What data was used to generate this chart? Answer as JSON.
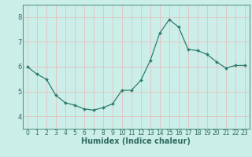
{
  "x": [
    0,
    1,
    2,
    3,
    4,
    5,
    6,
    7,
    8,
    9,
    10,
    11,
    12,
    13,
    14,
    15,
    16,
    17,
    18,
    19,
    20,
    21,
    22,
    23
  ],
  "y": [
    6.0,
    5.7,
    5.5,
    4.85,
    4.55,
    4.45,
    4.3,
    4.25,
    4.35,
    4.5,
    5.05,
    5.05,
    5.45,
    6.25,
    7.35,
    7.9,
    7.6,
    6.7,
    6.65,
    6.5,
    6.2,
    5.95,
    6.05,
    6.05
  ],
  "line_color": "#2e7d6e",
  "marker": "D",
  "marker_size": 2.0,
  "linewidth": 0.9,
  "background_color": "#cceee8",
  "grid_color": "#e8b8b8",
  "axis_color": "#2e6b5e",
  "xlabel": "Humidex (Indice chaleur)",
  "xlabel_fontsize": 7,
  "ylim": [
    3.5,
    8.5
  ],
  "xlim": [
    -0.5,
    23.5
  ],
  "yticks": [
    4,
    5,
    6,
    7,
    8
  ],
  "xtick_labels": [
    "0",
    "1",
    "2",
    "3",
    "4",
    "5",
    "6",
    "7",
    "8",
    "9",
    "1011",
    "1213",
    "1415",
    "1617",
    "1819",
    "2021",
    "2223"
  ],
  "tick_fontsize": 5.5,
  "spine_color": "#5a9a8a"
}
